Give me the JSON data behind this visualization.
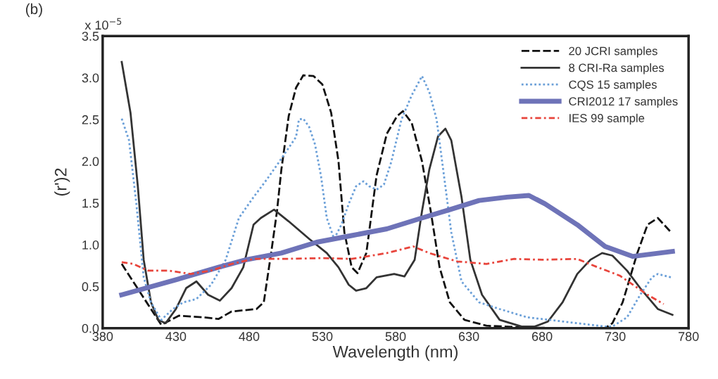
{
  "chart_data": {
    "type": "line",
    "xlabel": "Wavelength (nm)",
    "ylabel": "(r')2",
    "annotations": [
      "(b)",
      "x 10$^{−5}$"
    ],
    "xlim": [
      380,
      780
    ],
    "xticks": [
      380,
      430,
      480,
      530,
      580,
      630,
      680,
      730,
      780
    ],
    "ylim": [
      0,
      3.5
    ],
    "yticks": [
      {
        "value": 0,
        "label": "0.0"
      },
      0.5,
      {
        "value": 1,
        "label": "1.0"
      },
      1.5,
      {
        "value": 2,
        "label": "2.0"
      },
      2.5,
      {
        "value": 3,
        "label": "3.0"
      },
      3.5
    ],
    "grid": false,
    "legend": "top right",
    "marker": "none",
    "series": [
      {
        "name": "20 JCRI samples",
        "color": "#111111",
        "line_style": "dashed",
        "x": [
          393,
          420,
          432,
          449,
          459,
          468,
          485,
          490,
          495,
          499,
          502,
          507,
          512,
          517,
          524,
          530,
          536,
          541,
          545,
          550,
          554,
          560,
          567,
          574,
          581,
          585,
          591,
          598,
          604,
          610,
          617,
          627,
          642,
          666,
          694,
          723,
          728,
          735,
          745,
          752,
          759,
          768
        ],
        "values": [
          0.77,
          0.04,
          0.15,
          0.13,
          0.11,
          0.2,
          0.23,
          0.31,
          0.9,
          1.4,
          1.9,
          2.54,
          2.88,
          3.03,
          3.02,
          2.92,
          2.58,
          2.0,
          1.15,
          0.73,
          0.66,
          0.9,
          1.83,
          2.33,
          2.54,
          2.6,
          2.46,
          2.0,
          1.4,
          0.73,
          0.31,
          0.1,
          0.03,
          0.01,
          0.0,
          0.0,
          0.06,
          0.31,
          0.9,
          1.24,
          1.32,
          1.15
        ]
      },
      {
        "name": "8 CRI-Ra samples",
        "color": "#333333",
        "line_style": "solid",
        "x": [
          393,
          399,
          404,
          408,
          413,
          418,
          423,
          430,
          437,
          444,
          452,
          460,
          468,
          476,
          483,
          488,
          497,
          507,
          521,
          533,
          541,
          548,
          553,
          560,
          567,
          579,
          586,
          593,
          598,
          603,
          609,
          614,
          618,
          625,
          631,
          639,
          651,
          666,
          675,
          684,
          694,
          704,
          713,
          721,
          728,
          738,
          747,
          759,
          769
        ],
        "values": [
          3.19,
          2.58,
          1.7,
          0.82,
          0.31,
          0.1,
          0.06,
          0.23,
          0.48,
          0.56,
          0.4,
          0.33,
          0.48,
          0.73,
          1.24,
          1.32,
          1.42,
          1.28,
          1.07,
          0.9,
          0.73,
          0.52,
          0.45,
          0.48,
          0.61,
          0.65,
          0.62,
          0.82,
          1.4,
          1.9,
          2.3,
          2.39,
          2.25,
          1.57,
          0.82,
          0.4,
          0.1,
          0.02,
          0.02,
          0.08,
          0.31,
          0.65,
          0.82,
          0.9,
          0.87,
          0.69,
          0.48,
          0.23,
          0.16
        ]
      },
      {
        "name": "CQS 15 samples",
        "color": "#6a9fd8",
        "line_style": "dotted",
        "x": [
          393,
          398,
          403,
          408,
          413,
          420,
          428,
          435,
          444,
          454,
          464,
          473,
          483,
          492,
          500,
          507,
          512,
          514,
          517,
          521,
          525,
          529,
          533,
          538,
          543,
          548,
          553,
          558,
          562,
          567,
          572,
          577,
          584,
          591,
          598,
          603,
          608,
          613,
          618,
          625,
          637,
          651,
          670,
          685,
          704,
          723,
          728,
          738,
          747,
          755,
          759,
          768
        ],
        "values": [
          2.51,
          2.25,
          1.49,
          0.61,
          0.31,
          0.1,
          0.23,
          0.31,
          0.35,
          0.52,
          0.82,
          1.32,
          1.57,
          1.78,
          1.98,
          2.16,
          2.29,
          2.5,
          2.51,
          2.41,
          2.2,
          1.83,
          1.32,
          1.07,
          1.24,
          1.49,
          1.7,
          1.76,
          1.7,
          1.66,
          1.72,
          1.99,
          2.5,
          2.79,
          3.02,
          2.83,
          2.5,
          1.83,
          1.15,
          0.56,
          0.31,
          0.23,
          0.13,
          0.1,
          0.06,
          0.02,
          0.02,
          0.13,
          0.4,
          0.61,
          0.65,
          0.61
        ]
      },
      {
        "name": "CRI2012 17 samples",
        "color": "#6e73b8",
        "line_style": "solid",
        "x": [
          393,
          430,
          459,
          478,
          502,
          526,
          550,
          574,
          598,
          617,
          637,
          656,
          671,
          682,
          704,
          723,
          742,
          769
        ],
        "values": [
          0.4,
          0.58,
          0.73,
          0.82,
          0.9,
          1.03,
          1.11,
          1.19,
          1.32,
          1.42,
          1.53,
          1.57,
          1.59,
          1.49,
          1.24,
          0.98,
          0.86,
          0.92
        ]
      },
      {
        "name": "IES 99 sample",
        "color": "#e8453c",
        "line_style": "dashdot",
        "x": [
          393,
          401,
          411,
          425,
          440,
          454,
          468,
          483,
          502,
          531,
          550,
          574,
          592,
          603,
          622,
          642,
          661,
          680,
          704,
          718,
          733,
          752,
          763
        ],
        "values": [
          0.79,
          0.77,
          0.69,
          0.69,
          0.65,
          0.69,
          0.77,
          0.83,
          0.83,
          0.84,
          0.83,
          0.9,
          0.98,
          0.9,
          0.8,
          0.77,
          0.83,
          0.82,
          0.83,
          0.73,
          0.63,
          0.4,
          0.29
        ]
      }
    ]
  }
}
